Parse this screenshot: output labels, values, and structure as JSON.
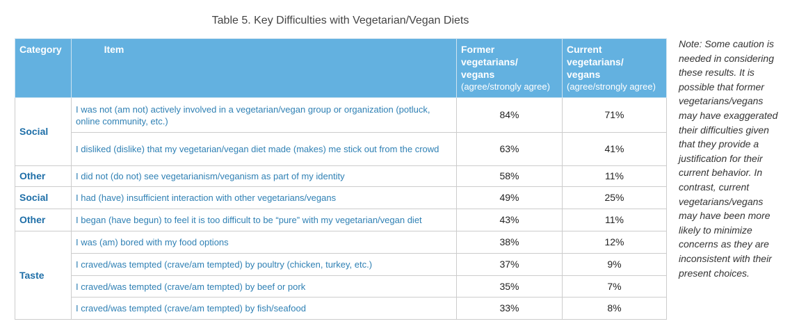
{
  "title": "Table 5. Key Difficulties with Vegetarian/Vegan Diets",
  "table": {
    "header": [
      {
        "label": "Category"
      },
      {
        "label": "Item"
      },
      {
        "label": "Former vegetarians/ vegans",
        "sub": "(agree/strongly agree)"
      },
      {
        "label": "Current vegetarians/ vegans",
        "sub": "(agree/strongly agree)"
      }
    ],
    "groups": [
      {
        "category": "Social",
        "rows": [
          {
            "item": "I was not (am not) actively involved in a vegetarian/vegan group or organization (potluck, online community, etc.)",
            "former": "84%",
            "current": "71%"
          },
          {
            "item": "I disliked (dislike) that my vegetarian/vegan diet made (makes) me stick out from the crowd",
            "former": "63%",
            "current": "41%"
          }
        ]
      },
      {
        "category": "Other",
        "rows": [
          {
            "item": "I did not (do not) see vegetarianism/veganism as part of my identity",
            "former": "58%",
            "current": "11%"
          }
        ]
      },
      {
        "category": "Social",
        "rows": [
          {
            "item": "I had (have) insufficient interaction with other vegetarians/vegans",
            "former": "49%",
            "current": "25%"
          }
        ]
      },
      {
        "category": "Other",
        "rows": [
          {
            "item": "I began (have begun) to feel it is too difficult to be “pure” with my vegetarian/vegan diet",
            "former": "43%",
            "current": "11%"
          }
        ]
      },
      {
        "category": "Taste",
        "rows": [
          {
            "item": "I was (am) bored with my food options",
            "former": "38%",
            "current": "12%"
          },
          {
            "item": "I craved/was tempted (crave/am tempted) by poultry (chicken, turkey, etc.)",
            "former": "37%",
            "current": "9%"
          },
          {
            "item": "I craved/was tempted (crave/am tempted) by beef or pork",
            "former": "35%",
            "current": "7%"
          },
          {
            "item": "I craved/was tempted (crave/am tempted) by fish/seafood",
            "former": "33%",
            "current": "8%"
          }
        ]
      }
    ]
  },
  "note": "Note: Some caution is needed in considering these results. It is possible that former vegetarians/vegans may have exaggerated their difficulties given that they provide a justification for their current behavior. In contrast, current vegetarians/vegans may have been more likely to minimize concerns as they are inconsistent with their present choices."
}
